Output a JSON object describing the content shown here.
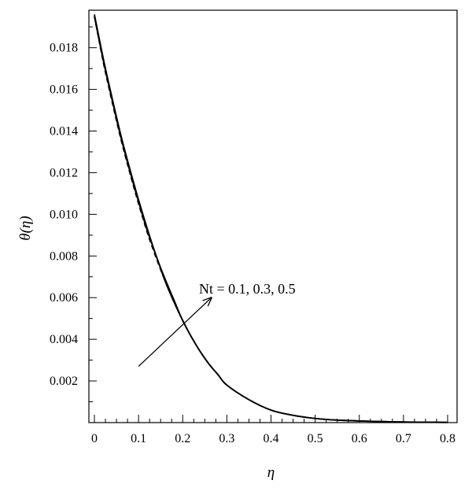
{
  "chart_data": {
    "type": "line",
    "title": "",
    "xlabel": "η",
    "ylabel": "θ(η)",
    "xlim": [
      0,
      0.8
    ],
    "ylim": [
      0,
      0.0198
    ],
    "xticks": [
      "0",
      "0.1",
      "0.2",
      "0.3",
      "0.4",
      "0.5",
      "0.6",
      "0.7",
      "0.8"
    ],
    "xtick_values": [
      0,
      0.1,
      0.2,
      0.3,
      0.4,
      0.5,
      0.6,
      0.7,
      0.8
    ],
    "yticks": [
      "0.002",
      "0.004",
      "0.006",
      "0.008",
      "0.010",
      "0.012",
      "0.014",
      "0.016",
      "0.018"
    ],
    "ytick_values": [
      0.002,
      0.004,
      0.006,
      0.008,
      0.01,
      0.012,
      0.014,
      0.016,
      0.018
    ],
    "grid": false,
    "legend": "none",
    "x": [
      0,
      0.02,
      0.04,
      0.06,
      0.08,
      0.1,
      0.12,
      0.14,
      0.16,
      0.18,
      0.2,
      0.22,
      0.24,
      0.26,
      0.28,
      0.3,
      0.35,
      0.4,
      0.45,
      0.5,
      0.55,
      0.6,
      0.65,
      0.7,
      0.75,
      0.8
    ],
    "series": [
      {
        "style": "solid",
        "values": [
          0.0195,
          0.0174,
          0.0155,
          0.0137,
          0.0121,
          0.0106,
          0.0092,
          0.008,
          0.0068,
          0.0058,
          0.0049,
          0.0041,
          0.0034,
          0.0028,
          0.0023,
          0.0018,
          0.0011,
          0.0006,
          0.00035,
          0.0002,
          0.00012,
          8e-05,
          5e-05,
          3e-05,
          2e-05,
          1e-05
        ]
      },
      {
        "style": "dashed",
        "values": [
          0.0195,
          0.0173,
          0.0154,
          0.0136,
          0.012,
          0.0105,
          0.0091,
          0.0079,
          0.0068,
          0.0058,
          0.0049,
          0.0041,
          0.0034,
          0.0028,
          0.0023,
          0.0018,
          0.0011,
          0.0006,
          0.00035,
          0.0002,
          0.00012,
          8e-05,
          5e-05,
          3e-05,
          2e-05,
          1e-05
        ]
      },
      {
        "style": "solid",
        "values": [
          0.0196,
          0.0175,
          0.0156,
          0.0138,
          0.0122,
          0.0107,
          0.0093,
          0.008,
          0.0069,
          0.0059,
          0.0049,
          0.0041,
          0.0034,
          0.0028,
          0.0023,
          0.0018,
          0.0011,
          0.0006,
          0.00035,
          0.0002,
          0.00012,
          8e-05,
          5e-05,
          3e-05,
          2e-05,
          1e-05
        ]
      }
    ],
    "annotation": {
      "text": "Nt = 0.1, 0.3, 0.5",
      "arrow_from": [
        0.1,
        0.0027
      ],
      "arrow_to": [
        0.265,
        0.006
      ]
    }
  }
}
